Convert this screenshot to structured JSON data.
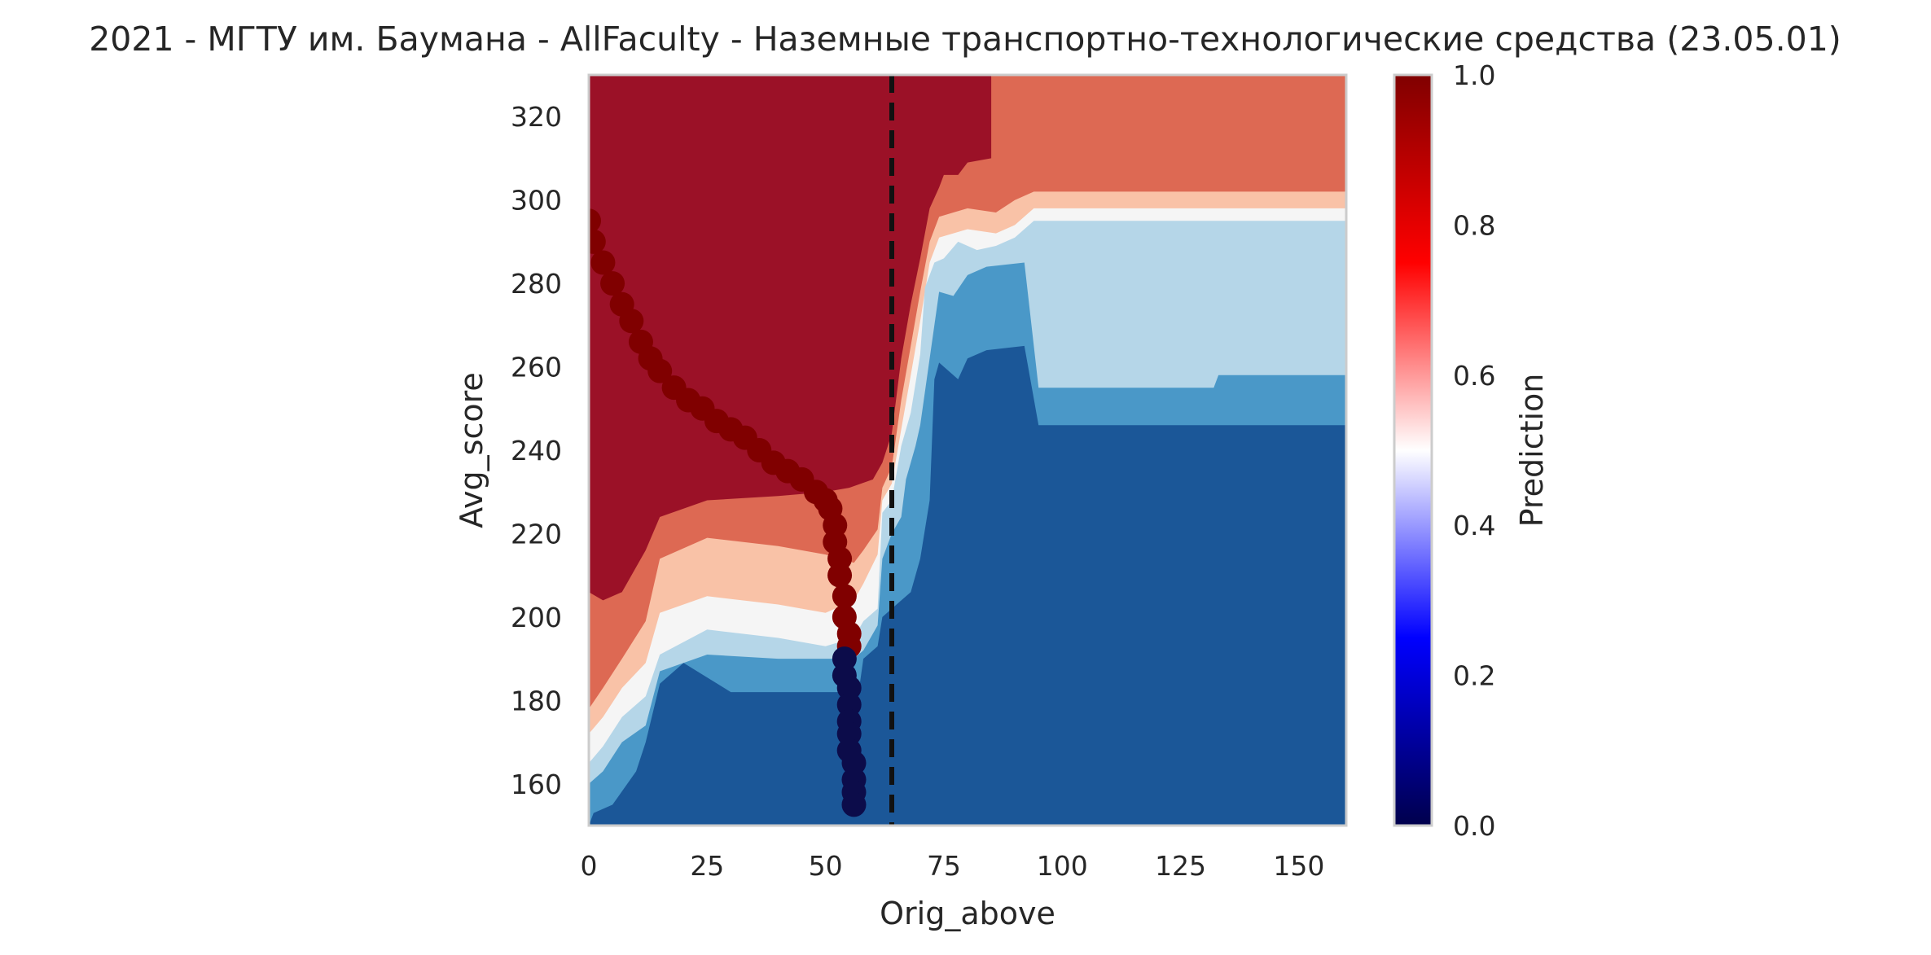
{
  "chart_data": {
    "type": "heatmap",
    "subtype": "filled-contour-with-scatter",
    "title": "2021 - МГТУ им. Баумана - AllFaculty - Наземные транспортно-технологические средства (23.05.01)",
    "xlabel": "Orig_above",
    "ylabel": "Avg_score",
    "xlim": [
      0,
      160
    ],
    "ylim": [
      150,
      330
    ],
    "xticks": [
      "0",
      "25",
      "50",
      "75",
      "100",
      "125",
      "150"
    ],
    "yticks": [
      "160",
      "180",
      "200",
      "220",
      "240",
      "260",
      "280",
      "300",
      "320"
    ],
    "grid": false,
    "colorbar": {
      "label": "Prediction",
      "colormap": "seismic",
      "range": [
        0,
        1
      ],
      "ticks": [
        "0.0",
        "0.2",
        "0.4",
        "0.6",
        "0.8",
        "1.0"
      ]
    },
    "contour_levels": [
      {
        "level": 0.05,
        "color": "#1b5798"
      },
      {
        "level": 0.2,
        "color": "#4a98c8"
      },
      {
        "level": 0.35,
        "color": "#b5d6e8"
      },
      {
        "level": 0.5,
        "color": "#f5f5f5"
      },
      {
        "level": 0.65,
        "color": "#f9c2a7"
      },
      {
        "level": 0.8,
        "color": "#dd6953"
      },
      {
        "level": 0.95,
        "color": "#9b1127"
      }
    ],
    "vertical_line": {
      "x": 64,
      "style": "dashed",
      "color": "#111111"
    },
    "contour_regions": [
      {
        "level_index": 0,
        "points": [
          [
            0,
            150
          ],
          [
            160,
            150
          ],
          [
            160,
            246
          ],
          [
            95,
            246
          ],
          [
            92,
            265
          ],
          [
            84,
            264
          ],
          [
            80,
            262
          ],
          [
            78,
            257
          ],
          [
            74,
            261
          ],
          [
            73,
            257
          ],
          [
            72,
            228
          ],
          [
            70,
            214
          ],
          [
            68,
            206
          ],
          [
            65,
            203
          ],
          [
            62,
            200
          ],
          [
            61,
            193
          ],
          [
            58,
            190
          ],
          [
            57,
            182
          ],
          [
            48,
            182
          ],
          [
            40,
            182
          ],
          [
            30,
            182
          ],
          [
            20,
            189
          ],
          [
            15,
            184
          ],
          [
            12,
            170
          ],
          [
            10,
            163
          ],
          [
            5,
            155
          ],
          [
            1,
            153
          ],
          [
            0,
            150
          ]
        ]
      },
      {
        "level_index": 1,
        "points": [
          [
            0,
            150
          ],
          [
            160,
            150
          ],
          [
            160,
            258
          ],
          [
            133,
            258
          ],
          [
            132,
            255
          ],
          [
            95,
            255
          ],
          [
            92,
            285
          ],
          [
            84,
            284
          ],
          [
            80,
            282
          ],
          [
            77,
            277
          ],
          [
            74,
            278
          ],
          [
            72,
            262
          ],
          [
            70,
            246
          ],
          [
            69,
            241
          ],
          [
            67,
            233
          ],
          [
            66,
            224
          ],
          [
            64,
            220
          ],
          [
            62,
            214
          ],
          [
            61,
            198
          ],
          [
            58,
            192
          ],
          [
            56,
            190
          ],
          [
            48,
            190
          ],
          [
            40,
            190
          ],
          [
            25,
            191
          ],
          [
            15,
            187
          ],
          [
            12,
            174
          ],
          [
            7,
            170
          ],
          [
            3,
            163
          ],
          [
            0,
            160
          ]
        ]
      },
      {
        "level_index": 2,
        "points": [
          [
            0,
            150
          ],
          [
            160,
            150
          ],
          [
            160,
            295
          ],
          [
            94,
            295
          ],
          [
            90,
            291
          ],
          [
            86,
            289
          ],
          [
            82,
            288
          ],
          [
            78,
            290
          ],
          [
            75,
            286
          ],
          [
            73,
            285
          ],
          [
            71,
            279
          ],
          [
            70,
            263
          ],
          [
            68,
            249
          ],
          [
            66,
            241
          ],
          [
            64,
            228
          ],
          [
            62,
            225
          ],
          [
            61,
            202
          ],
          [
            58,
            199
          ],
          [
            56,
            195
          ],
          [
            50,
            193
          ],
          [
            40,
            195
          ],
          [
            25,
            197
          ],
          [
            15,
            191
          ],
          [
            12,
            181
          ],
          [
            7,
            176
          ],
          [
            3,
            169
          ],
          [
            0,
            165
          ]
        ]
      },
      {
        "level_index": 3,
        "points": [
          [
            0,
            150
          ],
          [
            160,
            150
          ],
          [
            160,
            298
          ],
          [
            94,
            298
          ],
          [
            90,
            294
          ],
          [
            86,
            292
          ],
          [
            80,
            293
          ],
          [
            77,
            292
          ],
          [
            74,
            291
          ],
          [
            72,
            285
          ],
          [
            70,
            271
          ],
          [
            68,
            258
          ],
          [
            66,
            245
          ],
          [
            64,
            232
          ],
          [
            62,
            228
          ],
          [
            61,
            215
          ],
          [
            58,
            208
          ],
          [
            56,
            204
          ],
          [
            50,
            201
          ],
          [
            40,
            203
          ],
          [
            25,
            205
          ],
          [
            15,
            201
          ],
          [
            12,
            189
          ],
          [
            7,
            183
          ],
          [
            3,
            176
          ],
          [
            0,
            172
          ]
        ]
      },
      {
        "level_index": 4,
        "points": [
          [
            0,
            150
          ],
          [
            160,
            150
          ],
          [
            160,
            302
          ],
          [
            94,
            302
          ],
          [
            90,
            300
          ],
          [
            86,
            297
          ],
          [
            80,
            298
          ],
          [
            77,
            297
          ],
          [
            74,
            296
          ],
          [
            72,
            290
          ],
          [
            70,
            278
          ],
          [
            68,
            265
          ],
          [
            66,
            252
          ],
          [
            64,
            236
          ],
          [
            62,
            231
          ],
          [
            61,
            221
          ],
          [
            58,
            216
          ],
          [
            56,
            213
          ],
          [
            50,
            215
          ],
          [
            40,
            217
          ],
          [
            25,
            219
          ],
          [
            15,
            214
          ],
          [
            12,
            199
          ],
          [
            7,
            190
          ],
          [
            3,
            183
          ],
          [
            0,
            178
          ]
        ]
      },
      {
        "level_index": 5,
        "points": [
          [
            0,
            150
          ],
          [
            160,
            150
          ],
          [
            160,
            330
          ],
          [
            85,
            330
          ],
          [
            85,
            310
          ],
          [
            80,
            309
          ],
          [
            78,
            306
          ],
          [
            75,
            306
          ],
          [
            74,
            303
          ],
          [
            72,
            298
          ],
          [
            70,
            286
          ],
          [
            68,
            275
          ],
          [
            66,
            262
          ],
          [
            64,
            244
          ],
          [
            62,
            237
          ],
          [
            60,
            233
          ],
          [
            55,
            231
          ],
          [
            50,
            230
          ],
          [
            40,
            229
          ],
          [
            25,
            228
          ],
          [
            15,
            224
          ],
          [
            12,
            216
          ],
          [
            7,
            206
          ],
          [
            3,
            204
          ],
          [
            0,
            206
          ]
        ]
      },
      {
        "level_index": 6,
        "points": [
          [
            0,
            150
          ],
          [
            160,
            150
          ],
          [
            160,
            150
          ],
          [
            85,
            150
          ],
          [
            85,
            330
          ],
          [
            0,
            330
          ]
        ]
      }
    ],
    "scatter_series": [
      {
        "name": "",
        "color": "#800000",
        "points": [
          [
            0,
            295
          ],
          [
            1,
            290
          ],
          [
            3,
            285
          ],
          [
            5,
            280
          ],
          [
            7,
            275
          ],
          [
            9,
            271
          ],
          [
            11,
            266
          ],
          [
            13,
            262
          ],
          [
            15,
            259
          ],
          [
            18,
            255
          ],
          [
            21,
            252
          ],
          [
            24,
            250
          ],
          [
            27,
            247
          ],
          [
            30,
            245
          ],
          [
            33,
            243
          ],
          [
            36,
            240
          ],
          [
            39,
            237
          ],
          [
            42,
            235
          ],
          [
            45,
            233
          ],
          [
            48,
            230
          ],
          [
            50,
            228
          ],
          [
            51,
            226
          ],
          [
            52,
            222
          ],
          [
            52,
            218
          ],
          [
            53,
            214
          ],
          [
            53,
            210
          ],
          [
            54,
            205
          ],
          [
            54,
            200
          ],
          [
            55,
            196
          ],
          [
            55,
            193
          ]
        ]
      },
      {
        "name": "",
        "color": "#0c0c4a",
        "points": [
          [
            54,
            190
          ],
          [
            54,
            186
          ],
          [
            55,
            183
          ],
          [
            55,
            179
          ],
          [
            55,
            175
          ],
          [
            55,
            172
          ],
          [
            55,
            168
          ],
          [
            56,
            165
          ],
          [
            56,
            161
          ],
          [
            56,
            158
          ],
          [
            56,
            155
          ]
        ]
      }
    ]
  }
}
